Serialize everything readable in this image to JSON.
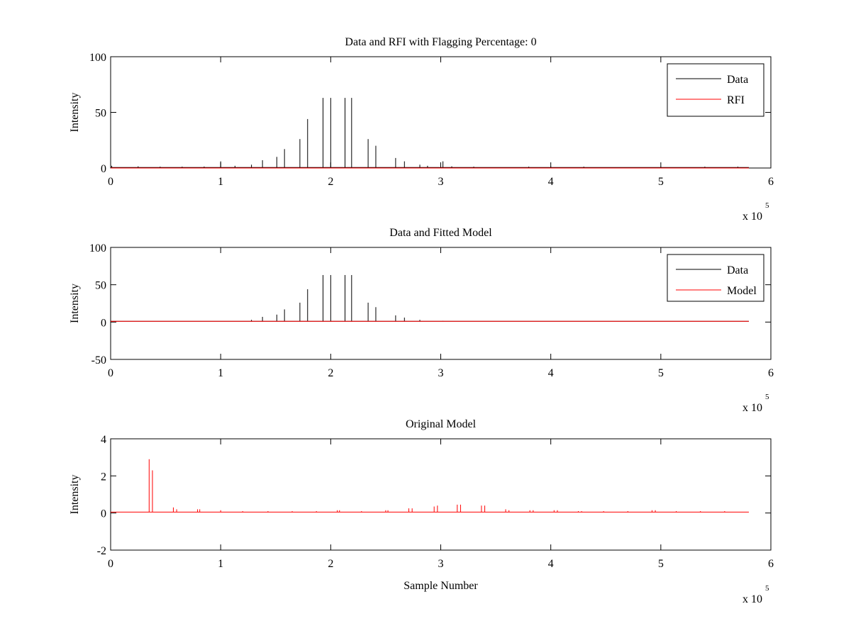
{
  "chart_data": [
    {
      "type": "line",
      "title": "Data and RFI with Flagging Percentage: 0",
      "xlabel": "",
      "ylabel": "Intensity",
      "xlim": [
        0,
        600000
      ],
      "ylim": [
        0,
        100
      ],
      "xticks": [
        0,
        1,
        2,
        3,
        4,
        5,
        6
      ],
      "xtick_labels": [
        "0",
        "1",
        "2",
        "3",
        "4",
        "5",
        "6"
      ],
      "yticks": [
        0,
        50,
        100
      ],
      "ytick_labels": [
        "0",
        "50",
        "100"
      ],
      "x_exponent_label": "x 10",
      "x_exponent_power": "5",
      "legend_position": "top-right",
      "colors": {
        "Data": "#000000",
        "RFI": "#ff0000"
      },
      "series": [
        {
          "name": "Data",
          "color": "#000000",
          "baseline": 0.5,
          "x_end": 580000,
          "spikes": [
            [
              1000,
              2
            ],
            [
              25000,
              1.5
            ],
            [
              45000,
              1.2
            ],
            [
              65000,
              1.2
            ],
            [
              85000,
              1.3
            ],
            [
              100000,
              6
            ],
            [
              113000,
              2
            ],
            [
              128000,
              3
            ],
            [
              138000,
              7
            ],
            [
              151000,
              10
            ],
            [
              158000,
              17
            ],
            [
              172000,
              26
            ],
            [
              179000,
              44
            ],
            [
              193000,
              63
            ],
            [
              200000,
              63
            ],
            [
              213000,
              63
            ],
            [
              219000,
              63
            ],
            [
              234000,
              26
            ],
            [
              241000,
              20
            ],
            [
              259000,
              9
            ],
            [
              267000,
              6
            ],
            [
              281000,
              3
            ],
            [
              288000,
              2
            ],
            [
              302000,
              6
            ],
            [
              310000,
              1.5
            ],
            [
              330000,
              1.2
            ],
            [
              380000,
              1.2
            ],
            [
              400000,
              1.5
            ],
            [
              430000,
              1.2
            ],
            [
              500000,
              1.2
            ],
            [
              540000,
              1.2
            ],
            [
              570000,
              1.2
            ]
          ]
        },
        {
          "name": "RFI",
          "color": "#ff0000",
          "baseline": 0,
          "x_end": 580000,
          "spikes": []
        }
      ]
    },
    {
      "type": "line",
      "title": "Data and Fitted Model",
      "xlabel": "",
      "ylabel": "Intensity",
      "xlim": [
        0,
        600000
      ],
      "ylim": [
        -50,
        100
      ],
      "xticks": [
        0,
        1,
        2,
        3,
        4,
        5,
        6
      ],
      "xtick_labels": [
        "0",
        "1",
        "2",
        "3",
        "4",
        "5",
        "6"
      ],
      "yticks": [
        -50,
        0,
        50,
        100
      ],
      "ytick_labels": [
        "-50",
        "0",
        "50",
        "100"
      ],
      "x_exponent_label": "x 10",
      "x_exponent_power": "5",
      "legend_position": "top-right",
      "colors": {
        "Data": "#000000",
        "Model": "#ff0000"
      },
      "series": [
        {
          "name": "Data",
          "color": "#000000",
          "baseline": 1,
          "x_end": 580000,
          "spikes": [
            [
              128000,
              3
            ],
            [
              138000,
              7
            ],
            [
              151000,
              10
            ],
            [
              158000,
              17
            ],
            [
              172000,
              26
            ],
            [
              179000,
              44
            ],
            [
              193000,
              63
            ],
            [
              200000,
              63
            ],
            [
              213000,
              63
            ],
            [
              219000,
              63
            ],
            [
              234000,
              26
            ],
            [
              241000,
              20
            ],
            [
              259000,
              9
            ],
            [
              267000,
              6
            ],
            [
              281000,
              3
            ],
            [
              302000,
              1.5
            ]
          ]
        },
        {
          "name": "Model",
          "color": "#ff0000",
          "baseline": 1,
          "x_end": 580000,
          "spikes": []
        }
      ]
    },
    {
      "type": "line",
      "title": "Original Model",
      "xlabel": "Sample Number",
      "ylabel": "Intensity",
      "xlim": [
        0,
        600000
      ],
      "ylim": [
        -2,
        4
      ],
      "xticks": [
        0,
        1,
        2,
        3,
        4,
        5,
        6
      ],
      "xtick_labels": [
        "0",
        "1",
        "2",
        "3",
        "4",
        "5",
        "6"
      ],
      "yticks": [
        -2,
        0,
        2,
        4
      ],
      "ytick_labels": [
        "-2",
        "0",
        "2",
        "4"
      ],
      "x_exponent_label": "x 10",
      "x_exponent_power": "5",
      "legend_position": "none",
      "colors": {
        "Model": "#ff0000"
      },
      "series": [
        {
          "name": "",
          "color": "#ff0000",
          "baseline": 0.05,
          "x_end": 580000,
          "spikes": [
            [
              35000,
              2.9
            ],
            [
              38000,
              2.3
            ],
            [
              57000,
              0.3
            ],
            [
              60000,
              0.2
            ],
            [
              79000,
              0.2
            ],
            [
              81000,
              0.2
            ],
            [
              100000,
              0.15
            ],
            [
              120000,
              0.1
            ],
            [
              143000,
              0.1
            ],
            [
              165000,
              0.1
            ],
            [
              187000,
              0.1
            ],
            [
              206000,
              0.15
            ],
            [
              208000,
              0.15
            ],
            [
              228000,
              0.1
            ],
            [
              250000,
              0.15
            ],
            [
              252000,
              0.15
            ],
            [
              271000,
              0.25
            ],
            [
              274000,
              0.25
            ],
            [
              294000,
              0.35
            ],
            [
              297000,
              0.4
            ],
            [
              315000,
              0.45
            ],
            [
              318000,
              0.45
            ],
            [
              337000,
              0.4
            ],
            [
              340000,
              0.4
            ],
            [
              359000,
              0.2
            ],
            [
              362000,
              0.15
            ],
            [
              381000,
              0.15
            ],
            [
              384000,
              0.15
            ],
            [
              403000,
              0.15
            ],
            [
              406000,
              0.15
            ],
            [
              425000,
              0.1
            ],
            [
              428000,
              0.1
            ],
            [
              448000,
              0.1
            ],
            [
              470000,
              0.1
            ],
            [
              492000,
              0.15
            ],
            [
              495000,
              0.15
            ],
            [
              514000,
              0.1
            ],
            [
              536000,
              0.1
            ],
            [
              558000,
              0.1
            ]
          ]
        }
      ]
    }
  ]
}
